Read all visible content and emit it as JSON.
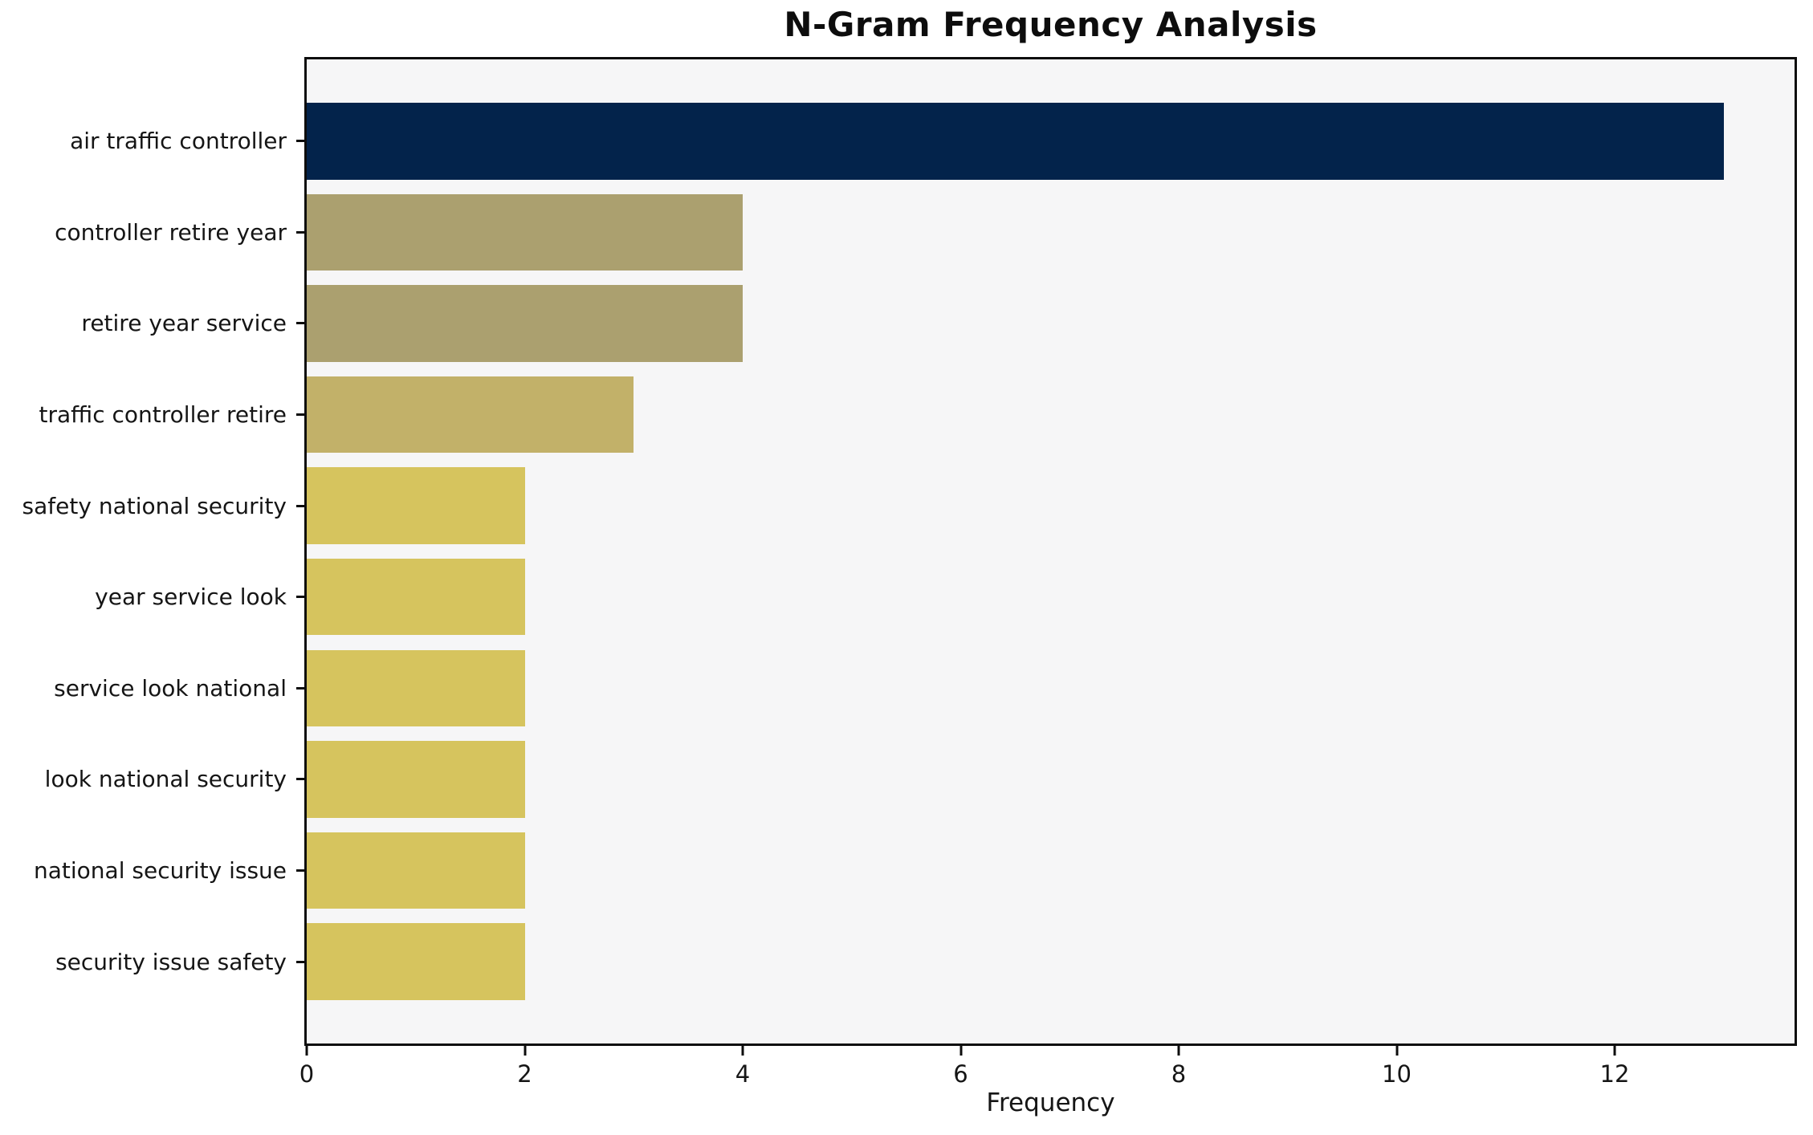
{
  "chart_data": {
    "type": "bar",
    "orientation": "horizontal",
    "title": "N-Gram Frequency Analysis",
    "xlabel": "Frequency",
    "ylabel": "",
    "categories": [
      "air traffic controller",
      "controller retire year",
      "retire year service",
      "traffic controller retire",
      "safety national security",
      "year service look",
      "service look national",
      "look national security",
      "national security issue",
      "security issue safety"
    ],
    "values": [
      13,
      4,
      4,
      3,
      2,
      2,
      2,
      2,
      2,
      2
    ],
    "bar_colors": [
      "#03234b",
      "#aba06f",
      "#aba06f",
      "#c2b169",
      "#d6c45e",
      "#d6c45e",
      "#d6c45e",
      "#d6c45e",
      "#d6c45e",
      "#d6c45e"
    ],
    "xticks": [
      0,
      2,
      4,
      6,
      8,
      10,
      12
    ],
    "xlim": [
      0,
      13.65
    ],
    "grid": false,
    "legend": null,
    "colors": {
      "plot_background": "#f6f6f7",
      "figure_background": "#ffffff",
      "axis": "#0d0d0d",
      "tick": "#151515"
    }
  }
}
